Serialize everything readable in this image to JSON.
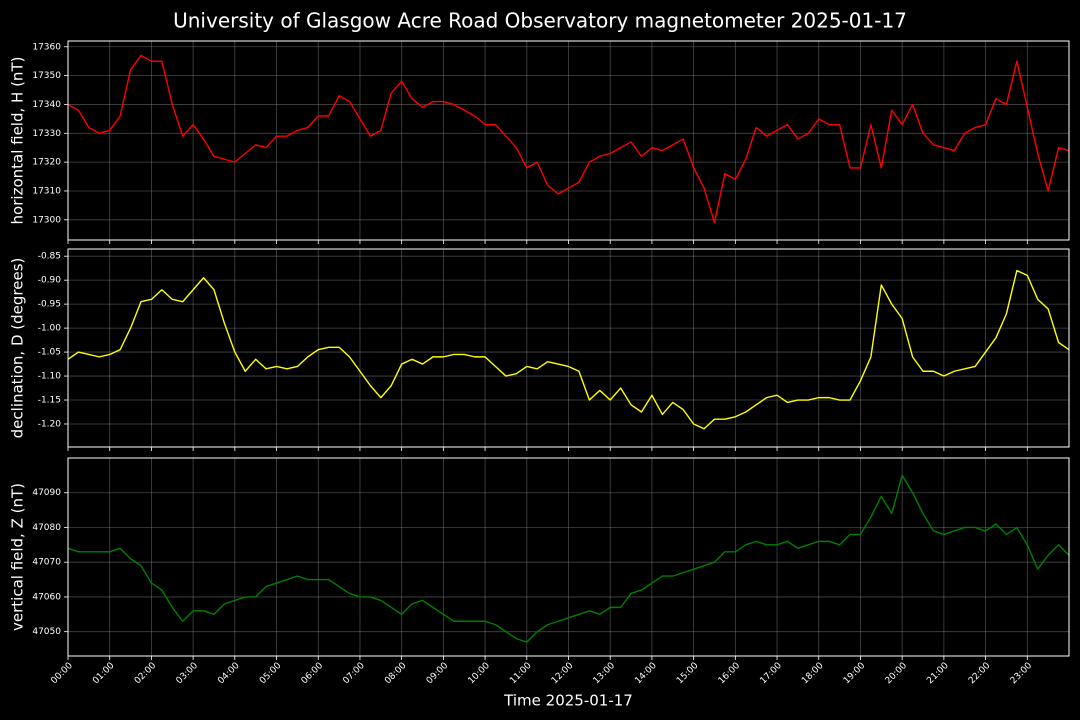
{
  "chart_data": [
    {
      "type": "line",
      "title": "University of Glasgow Acre Road Observatory magnetometer 2025-01-17",
      "ylabel": "horizontal field, H (nT)",
      "color": "#ff0000",
      "grid": true,
      "xlim": [
        0,
        24
      ],
      "ylim": [
        17293,
        17362
      ],
      "xticks": [
        0,
        1,
        2,
        3,
        4,
        5,
        6,
        7,
        8,
        9,
        10,
        11,
        12,
        13,
        14,
        15,
        16,
        17,
        18,
        19,
        20,
        21,
        22,
        23
      ],
      "yticks": [
        17300,
        17310,
        17320,
        17330,
        17340,
        17350,
        17360
      ],
      "x": [
        0,
        0.25,
        0.5,
        0.75,
        1,
        1.25,
        1.5,
        1.75,
        2,
        2.25,
        2.5,
        2.75,
        3,
        3.25,
        3.5,
        3.75,
        4,
        4.25,
        4.5,
        4.75,
        5,
        5.25,
        5.5,
        5.75,
        6,
        6.25,
        6.5,
        6.75,
        7,
        7.25,
        7.5,
        7.75,
        8,
        8.25,
        8.5,
        8.75,
        9,
        9.25,
        9.5,
        9.75,
        10,
        10.25,
        10.5,
        10.75,
        11,
        11.25,
        11.5,
        11.75,
        12,
        12.25,
        12.5,
        12.75,
        13,
        13.25,
        13.5,
        13.75,
        14,
        14.25,
        14.5,
        14.75,
        15,
        15.25,
        15.5,
        15.75,
        16,
        16.25,
        16.5,
        16.75,
        17,
        17.25,
        17.5,
        17.75,
        18,
        18.25,
        18.5,
        18.75,
        19,
        19.25,
        19.5,
        19.75,
        20,
        20.25,
        20.5,
        20.75,
        21,
        21.25,
        21.5,
        21.75,
        22,
        22.25,
        22.5,
        22.75,
        23,
        23.25,
        23.5,
        23.75,
        24
      ],
      "values": [
        17340,
        17338,
        17332,
        17330,
        17331,
        17336,
        17352,
        17357,
        17355,
        17355,
        17340,
        17329,
        17333,
        17328,
        17322,
        17321,
        17320,
        17323,
        17326,
        17325,
        17329,
        17329,
        17331,
        17332,
        17336,
        17336,
        17343,
        17341,
        17335,
        17329,
        17331,
        17344,
        17348,
        17342,
        17339,
        17341,
        17341,
        17340,
        17338,
        17336,
        17333,
        17333,
        17329,
        17325,
        17318,
        17320,
        17312,
        17309,
        17311,
        17313,
        17320,
        17322,
        17323,
        17325,
        17327,
        17322,
        17325,
        17324,
        17326,
        17328,
        17318,
        17311,
        17299,
        17316,
        17314,
        17321,
        17332,
        17329,
        17331,
        17333,
        17328,
        17330,
        17335,
        17333,
        17333,
        17318,
        17318,
        17333,
        17318,
        17338,
        17333,
        17340,
        17330,
        17326,
        17325,
        17324,
        17330,
        17332,
        17333,
        17342,
        17340,
        17355,
        17339,
        17323,
        17310,
        17325,
        17324
      ]
    },
    {
      "type": "line",
      "ylabel": "declination, D (degrees)",
      "color": "#ffff00",
      "grid": true,
      "xlim": [
        0,
        24
      ],
      "ylim": [
        -1.248,
        -0.835
      ],
      "xticks": [
        0,
        1,
        2,
        3,
        4,
        5,
        6,
        7,
        8,
        9,
        10,
        11,
        12,
        13,
        14,
        15,
        16,
        17,
        18,
        19,
        20,
        21,
        22,
        23
      ],
      "yticks": [
        {
          "value": -1.2,
          "label": "-1.20"
        },
        -1.15,
        {
          "value": -1.1,
          "label": "-1.10"
        },
        -1.05,
        {
          "value": -1,
          "label": "-1.00"
        },
        -0.95,
        {
          "value": -0.9,
          "label": "-0.90"
        },
        -0.85
      ],
      "x": [
        0,
        0.25,
        0.5,
        0.75,
        1,
        1.25,
        1.5,
        1.75,
        2,
        2.25,
        2.5,
        2.75,
        3,
        3.25,
        3.5,
        3.75,
        4,
        4.25,
        4.5,
        4.75,
        5,
        5.25,
        5.5,
        5.75,
        6,
        6.25,
        6.5,
        6.75,
        7,
        7.25,
        7.5,
        7.75,
        8,
        8.25,
        8.5,
        8.75,
        9,
        9.25,
        9.5,
        9.75,
        10,
        10.25,
        10.5,
        10.75,
        11,
        11.25,
        11.5,
        11.75,
        12,
        12.25,
        12.5,
        12.75,
        13,
        13.25,
        13.5,
        13.75,
        14,
        14.25,
        14.5,
        14.75,
        15,
        15.25,
        15.5,
        15.75,
        16,
        16.25,
        16.5,
        16.75,
        17,
        17.25,
        17.5,
        17.75,
        18,
        18.25,
        18.5,
        18.75,
        19,
        19.25,
        19.5,
        19.75,
        20,
        20.25,
        20.5,
        20.75,
        21,
        21.25,
        21.5,
        21.75,
        22,
        22.25,
        22.5,
        22.75,
        23,
        23.25,
        23.5,
        23.75,
        24
      ],
      "values": [
        -1.065,
        -1.05,
        -1.055,
        -1.06,
        -1.055,
        -1.045,
        -1.0,
        -0.945,
        -0.94,
        -0.92,
        -0.94,
        -0.945,
        -0.92,
        -0.895,
        -0.92,
        -0.99,
        -1.05,
        -1.09,
        -1.065,
        -1.085,
        -1.08,
        -1.085,
        -1.08,
        -1.06,
        -1.045,
        -1.04,
        -1.04,
        -1.06,
        -1.09,
        -1.12,
        -1.145,
        -1.12,
        -1.075,
        -1.065,
        -1.075,
        -1.06,
        -1.06,
        -1.055,
        -1.055,
        -1.06,
        -1.06,
        -1.08,
        -1.1,
        -1.095,
        -1.08,
        -1.085,
        -1.07,
        -1.075,
        -1.08,
        -1.09,
        -1.15,
        -1.13,
        -1.15,
        -1.125,
        -1.16,
        -1.175,
        -1.14,
        -1.18,
        -1.155,
        -1.17,
        -1.2,
        -1.21,
        -1.19,
        -1.19,
        -1.185,
        -1.175,
        -1.16,
        -1.145,
        -1.14,
        -1.155,
        -1.15,
        -1.15,
        -1.145,
        -1.145,
        -1.15,
        -1.15,
        -1.11,
        -1.06,
        -0.91,
        -0.95,
        -0.98,
        -1.06,
        -1.09,
        -1.09,
        -1.1,
        -1.09,
        -1.085,
        -1.08,
        -1.05,
        -1.02,
        -0.97,
        -0.88,
        -0.89,
        -0.94,
        -0.96,
        -1.03,
        -1.045
      ]
    },
    {
      "type": "line",
      "ylabel": "vertical field, Z (nT)",
      "xlabel": "Time 2025-01-17",
      "color": "#008000",
      "grid": true,
      "xlim": [
        0,
        24
      ],
      "ylim": [
        47043,
        47100
      ],
      "xticks": [
        {
          "value": 0,
          "label": "00:00"
        },
        {
          "value": 1,
          "label": "01:00"
        },
        {
          "value": 2,
          "label": "02:00"
        },
        {
          "value": 3,
          "label": "03:00"
        },
        {
          "value": 4,
          "label": "04:00"
        },
        {
          "value": 5,
          "label": "05:00"
        },
        {
          "value": 6,
          "label": "06:00"
        },
        {
          "value": 7,
          "label": "07:00"
        },
        {
          "value": 8,
          "label": "08:00"
        },
        {
          "value": 9,
          "label": "09:00"
        },
        {
          "value": 10,
          "label": "10:00"
        },
        {
          "value": 11,
          "label": "11:00"
        },
        {
          "value": 12,
          "label": "12:00"
        },
        {
          "value": 13,
          "label": "13:00"
        },
        {
          "value": 14,
          "label": "14:00"
        },
        {
          "value": 15,
          "label": "15:00"
        },
        {
          "value": 16,
          "label": "16:00"
        },
        {
          "value": 17,
          "label": "17:00"
        },
        {
          "value": 18,
          "label": "18:00"
        },
        {
          "value": 19,
          "label": "19:00"
        },
        {
          "value": 20,
          "label": "20:00"
        },
        {
          "value": 21,
          "label": "21:00"
        },
        {
          "value": 22,
          "label": "22:00"
        },
        {
          "value": 23,
          "label": "23:00"
        }
      ],
      "yticks": [
        47050,
        47060,
        47070,
        47080,
        47090
      ],
      "x": [
        0,
        0.25,
        0.5,
        0.75,
        1,
        1.25,
        1.5,
        1.75,
        2,
        2.25,
        2.5,
        2.75,
        3,
        3.25,
        3.5,
        3.75,
        4,
        4.25,
        4.5,
        4.75,
        5,
        5.25,
        5.5,
        5.75,
        6,
        6.25,
        6.5,
        6.75,
        7,
        7.25,
        7.5,
        7.75,
        8,
        8.25,
        8.5,
        8.75,
        9,
        9.25,
        9.5,
        9.75,
        10,
        10.25,
        10.5,
        10.75,
        11,
        11.25,
        11.5,
        11.75,
        12,
        12.25,
        12.5,
        12.75,
        13,
        13.25,
        13.5,
        13.75,
        14,
        14.25,
        14.5,
        14.75,
        15,
        15.25,
        15.5,
        15.75,
        16,
        16.25,
        16.5,
        16.75,
        17,
        17.25,
        17.5,
        17.75,
        18,
        18.25,
        18.5,
        18.75,
        19,
        19.25,
        19.5,
        19.75,
        20,
        20.25,
        20.5,
        20.75,
        21,
        21.25,
        21.5,
        21.75,
        22,
        22.25,
        22.5,
        22.75,
        23,
        23.25,
        23.5,
        23.75,
        24
      ],
      "values": [
        47074,
        47073,
        47073,
        47073,
        47073,
        47074,
        47071,
        47069,
        47064,
        47062,
        47057,
        47053,
        47056,
        47056,
        47055,
        47058,
        47059,
        47060,
        47060,
        47063,
        47064,
        47065,
        47066,
        47065,
        47065,
        47065,
        47063,
        47061,
        47060,
        47060,
        47059,
        47057,
        47055,
        47058,
        47059,
        47057,
        47055,
        47053,
        47053,
        47053,
        47053,
        47052,
        47050,
        47048,
        47047,
        47050,
        47052,
        47053,
        47054,
        47055,
        47056,
        47055,
        47057,
        47057,
        47061,
        47062,
        47064,
        47066,
        47066,
        47067,
        47068,
        47069,
        47070,
        47073,
        47073,
        47075,
        47076,
        47075,
        47075,
        47076,
        47074,
        47075,
        47076,
        47076,
        47075,
        47078,
        47078,
        47083,
        47089,
        47084,
        47095,
        47090,
        47084,
        47079,
        47078,
        47079,
        47080,
        47080,
        47079,
        47081,
        47078,
        47080,
        47075,
        47068,
        47072,
        47075,
        47072
      ]
    }
  ]
}
